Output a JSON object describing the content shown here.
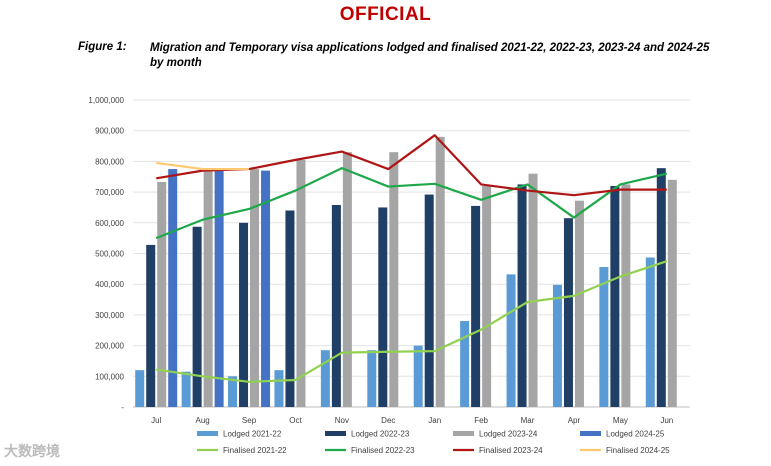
{
  "header": {
    "banner": "OFFICIAL",
    "figure_label": "Figure 1:",
    "figure_title": "Migration and Temporary visa applications lodged and finalised 2021-22, 2022-23, 2023-24 and 2024-25 by month"
  },
  "watermark": "大数跨境",
  "chart_data": {
    "type": "bar",
    "categories": [
      "Jul",
      "Aug",
      "Sep",
      "Oct",
      "Nov",
      "Dec",
      "Jan",
      "Feb",
      "Mar",
      "Apr",
      "May",
      "Jun"
    ],
    "ylim": [
      0,
      1000000
    ],
    "yticks": [
      0,
      100000,
      200000,
      300000,
      400000,
      500000,
      600000,
      700000,
      800000,
      900000,
      1000000
    ],
    "ytick_labels": [
      "-",
      "100,000",
      "200,000",
      "300,000",
      "400,000",
      "500,000",
      "600,000",
      "700,000",
      "800,000",
      "900,000",
      "1,000,000"
    ],
    "grid": true,
    "legend_position": "bottom",
    "bar_series": [
      {
        "name": "Lodged 2021-22",
        "color": "#5b9bd5",
        "values": [
          120000,
          115000,
          100000,
          120000,
          185000,
          185000,
          200000,
          280000,
          432000,
          398000,
          456000,
          487000
        ]
      },
      {
        "name": "Lodged 2022-23",
        "color": "#1f3f66",
        "values": [
          528000,
          587000,
          600000,
          640000,
          658000,
          650000,
          692000,
          655000,
          725000,
          615000,
          720000,
          778000
        ]
      },
      {
        "name": "Lodged 2023-24",
        "color": "#a5a5a5",
        "values": [
          733000,
          772000,
          775000,
          805000,
          830000,
          830000,
          880000,
          720000,
          760000,
          672000,
          725000,
          740000
        ]
      },
      {
        "name": "Lodged 2024-25",
        "color": "#4472c4",
        "values": [
          775000,
          770000,
          770000,
          null,
          null,
          null,
          null,
          null,
          null,
          null,
          null,
          null
        ]
      }
    ],
    "line_series": [
      {
        "name": "Finalised 2021-22",
        "color": "#92d050",
        "values": [
          122000,
          100000,
          82000,
          88000,
          177000,
          180000,
          182000,
          252000,
          342000,
          362000,
          425000,
          475000
        ]
      },
      {
        "name": "Finalised 2022-23",
        "color": "#1ea84a",
        "values": [
          550000,
          610000,
          645000,
          705000,
          778000,
          718000,
          727000,
          675000,
          725000,
          617000,
          725000,
          760000
        ]
      },
      {
        "name": "Finalised 2023-24",
        "color": "#b01515",
        "values": [
          745000,
          770000,
          775000,
          805000,
          832000,
          775000,
          885000,
          725000,
          705000,
          690000,
          708000,
          708000
        ]
      },
      {
        "name": "Finalised 2024-25",
        "color": "#ffc870",
        "values": [
          795000,
          775000,
          775000,
          null,
          null,
          null,
          null,
          null,
          null,
          null,
          null,
          null
        ]
      }
    ]
  }
}
